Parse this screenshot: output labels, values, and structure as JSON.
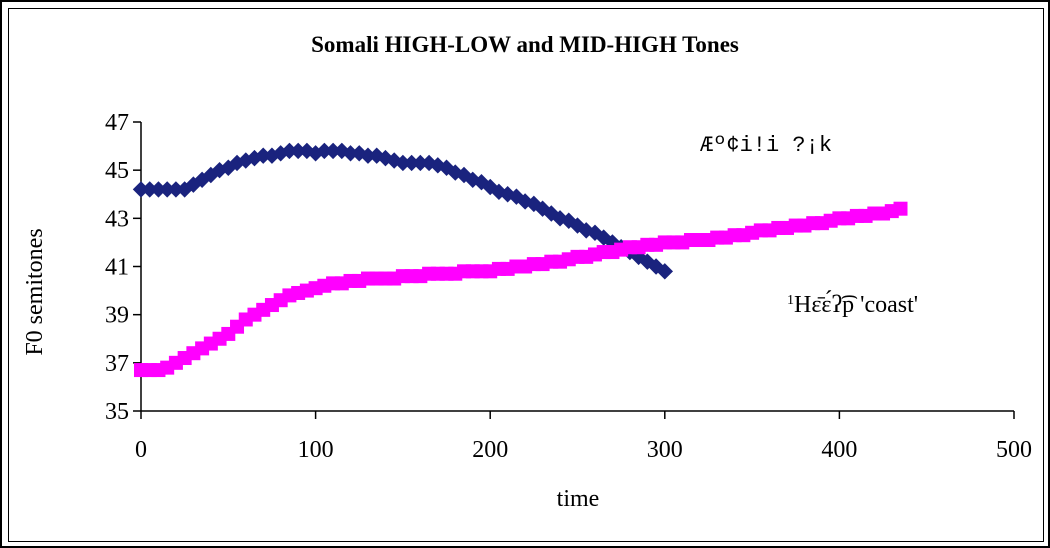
{
  "chart_data": {
    "type": "scatter",
    "title": "Somali HIGH-LOW and MID-HIGH Tones",
    "xlabel": "time",
    "ylabel": "F0 semitones",
    "xlim": [
      0,
      500
    ],
    "ylim": [
      35,
      47
    ],
    "xticks": [
      "0",
      "100",
      "200",
      "300",
      "400",
      "500"
    ],
    "yticks": [
      "35",
      "37",
      "39",
      "41",
      "43",
      "45",
      "47"
    ],
    "grid": false,
    "legend": "none",
    "annotations": [
      {
        "text": "Æº¢i!i ?¡k",
        "style": "mono"
      },
      {
        "sup": "1",
        "text": "Hɛ̄ɛ́ʔ͡p 'coast'",
        "style": "serif"
      }
    ],
    "series": [
      {
        "marker": "diamond",
        "color": "#1a237e",
        "x": [
          0,
          5,
          10,
          15,
          20,
          25,
          30,
          35,
          40,
          45,
          50,
          55,
          60,
          65,
          70,
          75,
          80,
          85,
          90,
          95,
          100,
          105,
          110,
          115,
          120,
          125,
          130,
          135,
          140,
          145,
          150,
          155,
          160,
          165,
          170,
          175,
          180,
          185,
          190,
          195,
          200,
          205,
          210,
          215,
          220,
          225,
          230,
          235,
          240,
          245,
          250,
          255,
          260,
          265,
          270,
          275,
          280,
          285,
          290,
          295,
          300
        ],
        "y": [
          44.2,
          44.2,
          44.2,
          44.2,
          44.2,
          44.2,
          44.4,
          44.6,
          44.8,
          45.0,
          45.1,
          45.3,
          45.4,
          45.5,
          45.6,
          45.6,
          45.7,
          45.8,
          45.8,
          45.8,
          45.7,
          45.8,
          45.8,
          45.8,
          45.7,
          45.7,
          45.6,
          45.6,
          45.5,
          45.4,
          45.3,
          45.3,
          45.3,
          45.3,
          45.2,
          45.1,
          44.9,
          44.8,
          44.6,
          44.5,
          44.3,
          44.1,
          44.0,
          43.9,
          43.7,
          43.6,
          43.4,
          43.2,
          43.0,
          42.9,
          42.7,
          42.5,
          42.4,
          42.2,
          42.0,
          41.8,
          41.6,
          41.4,
          41.2,
          41.0,
          40.8
        ]
      },
      {
        "marker": "square",
        "color": "#ff00ff",
        "x": [
          0,
          5,
          10,
          15,
          20,
          25,
          30,
          35,
          40,
          45,
          50,
          55,
          60,
          65,
          70,
          75,
          80,
          85,
          90,
          95,
          100,
          105,
          110,
          115,
          120,
          125,
          130,
          135,
          140,
          145,
          150,
          155,
          160,
          165,
          170,
          175,
          180,
          185,
          190,
          195,
          200,
          205,
          210,
          215,
          220,
          225,
          230,
          235,
          240,
          245,
          250,
          255,
          260,
          265,
          270,
          275,
          280,
          285,
          290,
          295,
          300,
          305,
          310,
          315,
          320,
          325,
          330,
          335,
          340,
          345,
          350,
          355,
          360,
          365,
          370,
          375,
          380,
          385,
          390,
          395,
          400,
          405,
          410,
          415,
          420,
          425,
          430,
          435
        ],
        "y": [
          36.7,
          36.7,
          36.7,
          36.8,
          37.0,
          37.2,
          37.4,
          37.6,
          37.8,
          38.0,
          38.2,
          38.5,
          38.8,
          39.0,
          39.2,
          39.4,
          39.6,
          39.8,
          39.9,
          40.0,
          40.1,
          40.2,
          40.3,
          40.3,
          40.4,
          40.4,
          40.5,
          40.5,
          40.5,
          40.5,
          40.6,
          40.6,
          40.6,
          40.7,
          40.7,
          40.7,
          40.7,
          40.8,
          40.8,
          40.8,
          40.8,
          40.9,
          40.9,
          41.0,
          41.0,
          41.1,
          41.1,
          41.2,
          41.2,
          41.3,
          41.4,
          41.4,
          41.5,
          41.6,
          41.6,
          41.7,
          41.8,
          41.8,
          41.9,
          41.9,
          42.0,
          42.0,
          42.0,
          42.1,
          42.1,
          42.1,
          42.2,
          42.2,
          42.3,
          42.3,
          42.4,
          42.5,
          42.5,
          42.6,
          42.6,
          42.7,
          42.7,
          42.8,
          42.8,
          42.9,
          43.0,
          43.0,
          43.1,
          43.1,
          43.2,
          43.2,
          43.3,
          43.4
        ]
      }
    ]
  }
}
